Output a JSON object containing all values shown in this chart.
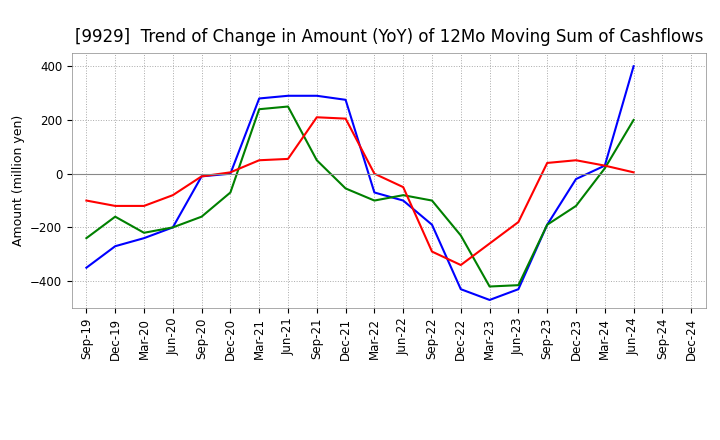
{
  "title": "[9929]  Trend of Change in Amount (YoY) of 12Mo Moving Sum of Cashflows",
  "ylabel": "Amount (million yen)",
  "ylim": [
    -500,
    450
  ],
  "yticks": [
    -400,
    -200,
    0,
    200,
    400
  ],
  "x_labels": [
    "Sep-19",
    "Dec-19",
    "Mar-20",
    "Jun-20",
    "Sep-20",
    "Dec-20",
    "Mar-21",
    "Jun-21",
    "Sep-21",
    "Dec-21",
    "Mar-22",
    "Jun-22",
    "Sep-22",
    "Dec-22",
    "Mar-23",
    "Jun-23",
    "Sep-23",
    "Dec-23",
    "Mar-24",
    "Jun-24",
    "Sep-24",
    "Dec-24"
  ],
  "operating": [
    -100,
    -120,
    -120,
    -80,
    -10,
    5,
    50,
    55,
    210,
    205,
    0,
    -50,
    -290,
    -340,
    -260,
    -180,
    40,
    50,
    30,
    5,
    null,
    null
  ],
  "investing": [
    -240,
    -160,
    -220,
    -200,
    -160,
    -70,
    240,
    250,
    50,
    -55,
    -100,
    -80,
    -100,
    -230,
    -420,
    -415,
    -190,
    -120,
    20,
    200,
    null,
    null
  ],
  "free": [
    -350,
    -270,
    -240,
    -200,
    -10,
    0,
    280,
    290,
    290,
    275,
    -70,
    -100,
    -190,
    -430,
    -470,
    -430,
    -190,
    -20,
    30,
    400,
    null,
    null
  ],
  "operating_color": "#ff0000",
  "investing_color": "#008000",
  "free_color": "#0000ff",
  "background_color": "#ffffff",
  "grid_color": "#aaaaaa",
  "title_fontsize": 12,
  "axis_fontsize": 9,
  "tick_fontsize": 8.5,
  "legend_fontsize": 9.5
}
